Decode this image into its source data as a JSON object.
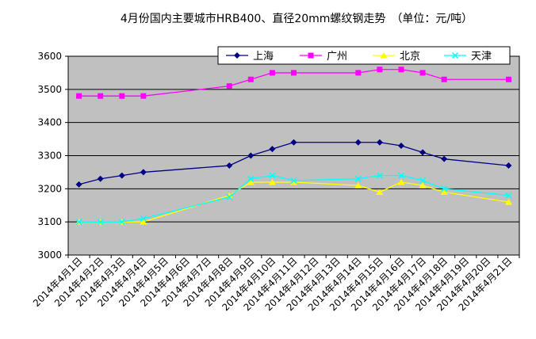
{
  "chart_data": {
    "type": "line",
    "title": "4月份国内主要城市HRB400、直径20mm螺纹钢走势　（单位：元/吨）",
    "xlabel": "",
    "ylabel": "",
    "ylim": [
      3000,
      3600
    ],
    "yticks": [
      3000,
      3100,
      3200,
      3300,
      3400,
      3500,
      3600
    ],
    "grid": true,
    "legend_position": "top-right",
    "background": "#c0c0c0",
    "categories": [
      "2014年4月1日",
      "2014年4月2日",
      "2014年4月3日",
      "2014年4月4日",
      "2014年4月5日",
      "2014年4月6日",
      "2014年4月7日",
      "2014年4月8日",
      "2014年4月9日",
      "2014年4月10日",
      "2014年4月11日",
      "2014年4月12日",
      "2014年4月13日",
      "2014年4月14日",
      "2014年4月15日",
      "2014年4月16日",
      "2014年4月17日",
      "2014年4月18日",
      "2014年4月19日",
      "2014年4月20日",
      "2014年4月21日"
    ],
    "series": [
      {
        "name": "上海",
        "color": "#000080",
        "marker": "diamond",
        "values": [
          3213,
          3230,
          3240,
          3250,
          null,
          null,
          null,
          3270,
          3300,
          3320,
          3340,
          null,
          null,
          3340,
          3340,
          3330,
          3310,
          3290,
          null,
          null,
          3270
        ]
      },
      {
        "name": "广州",
        "color": "#ff00ff",
        "marker": "square",
        "values": [
          3480,
          3480,
          3480,
          3480,
          null,
          null,
          null,
          3510,
          3530,
          3550,
          3550,
          null,
          null,
          3550,
          3560,
          3560,
          3550,
          3530,
          null,
          null,
          3530
        ]
      },
      {
        "name": "北京",
        "color": "#ffff00",
        "marker": "triangle",
        "values": [
          3100,
          3100,
          3100,
          3100,
          null,
          null,
          null,
          3180,
          3220,
          3220,
          3220,
          null,
          null,
          3210,
          3190,
          3220,
          3210,
          3190,
          null,
          null,
          3160
        ]
      },
      {
        "name": "天津",
        "color": "#00ffff",
        "marker": "x",
        "values": [
          3100,
          3100,
          3100,
          3110,
          null,
          null,
          null,
          3175,
          3230,
          3240,
          3225,
          null,
          null,
          3230,
          3240,
          3240,
          3225,
          3200,
          null,
          null,
          3180
        ]
      }
    ]
  }
}
